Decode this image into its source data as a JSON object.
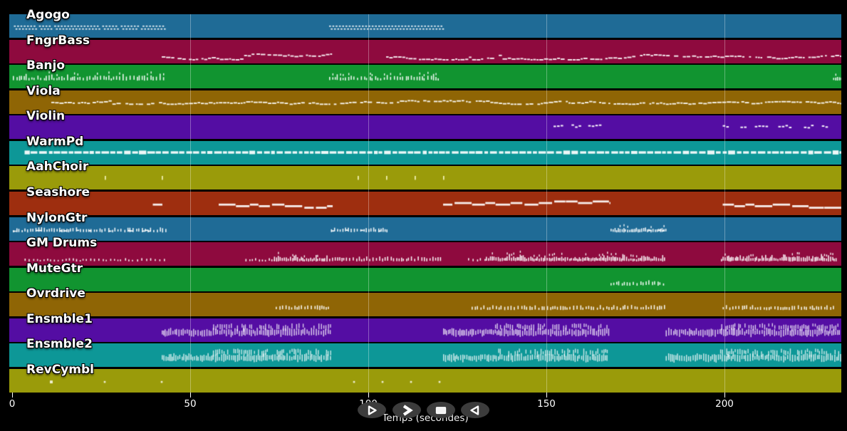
{
  "app": {
    "background": "#000000",
    "note_color": "#ffffff"
  },
  "axis": {
    "xlabel": "Temps (secondes)",
    "ticks": [
      0,
      50,
      100,
      150,
      200
    ],
    "x_range": [
      0,
      233
    ]
  },
  "transport": {
    "buttons": [
      {
        "name": "play",
        "icon": "play-triangle-right-outline"
      },
      {
        "name": "fast-forward",
        "icon": "chevron-right-bold"
      },
      {
        "name": "stop",
        "icon": "stop-square"
      },
      {
        "name": "rewind",
        "icon": "triangle-left-outline"
      }
    ]
  },
  "chart_data": {
    "type": "heatmap",
    "subtype": "midi-track-timeline",
    "x_unit": "seconds",
    "x_range": [
      0,
      233
    ],
    "xlabel": "Temps (secondes)",
    "tracks": [
      {
        "label": "Agogo",
        "color": "#1f6b96",
        "regions": [
          {
            "start": 0.5,
            "end": 43,
            "style": "zigzag",
            "y": 0.56
          },
          {
            "start": 89,
            "end": 121,
            "style": "zigzag",
            "y": 0.56
          }
        ]
      },
      {
        "label": "FngrBass",
        "color": "#8e0a3e",
        "regions": [
          {
            "start": 42,
            "end": 90,
            "style": "dashes",
            "y": 0.71,
            "amp": 4
          },
          {
            "start": 105,
            "end": 233,
            "style": "dashes",
            "y": 0.71,
            "amp": 4
          }
        ]
      },
      {
        "label": "Banjo",
        "color": "#119430",
        "regions": [
          {
            "start": 0.2,
            "end": 43,
            "style": "ticks",
            "y": 0.6,
            "density": "med",
            "tall": true
          },
          {
            "start": 89,
            "end": 120.5,
            "style": "ticks",
            "y": 0.6,
            "density": "med",
            "tall": true
          },
          {
            "start": 230.5,
            "end": 233.3,
            "style": "ticks",
            "y": 0.6,
            "density": "dense"
          }
        ]
      },
      {
        "label": "Viola",
        "color": "#8f6505",
        "regions": [
          {
            "start": 11,
            "end": 233,
            "style": "dashes",
            "y": 0.49,
            "amp": 2.5
          }
        ]
      },
      {
        "label": "Violin",
        "color": "#540da3",
        "regions": [
          {
            "start": 152,
            "end": 167,
            "style": "dash-groups",
            "y": 0.42
          },
          {
            "start": 199.5,
            "end": 231,
            "style": "dash-groups",
            "y": 0.44
          }
        ]
      },
      {
        "label": "WarmPd",
        "color": "#0d9797",
        "regions": [
          {
            "start": 3.5,
            "end": 233,
            "style": "blocks",
            "y": 0.49
          }
        ]
      },
      {
        "label": "AahChoir",
        "color": "#9a9b0a",
        "regions": [
          {
            "style": "sparse-ticks",
            "y": 0.5,
            "at": [
              26,
              42,
              97,
              105,
              113,
              121
            ],
            "mark_color": "#fdfdc8"
          }
        ]
      },
      {
        "label": "Seashore",
        "color": "#9e2e0f",
        "regions": [
          {
            "start": 39.5,
            "end": 42.5,
            "style": "steps",
            "y": 0.51,
            "flat": true
          },
          {
            "start": 58,
            "end": 90,
            "style": "steps",
            "y": 0.51
          },
          {
            "start": 121,
            "end": 168,
            "style": "steps",
            "y": 0.51
          },
          {
            "start": 199.5,
            "end": 233,
            "style": "steps",
            "y": 0.51
          }
        ]
      },
      {
        "label": "NylonGtr",
        "color": "#1f6b96",
        "regions": [
          {
            "start": 0.2,
            "end": 43.5,
            "style": "ticks",
            "y": 0.59,
            "density": "med",
            "mix": true
          },
          {
            "start": 89.5,
            "end": 106,
            "style": "ticks",
            "y": 0.59,
            "density": "med",
            "mix": true
          },
          {
            "start": 168,
            "end": 183.5,
            "style": "ticks",
            "y": 0.59,
            "density": "dense",
            "mix": true
          }
        ]
      },
      {
        "label": "GM Drums",
        "color": "#8e0a3e",
        "regions": [
          {
            "start": 3.5,
            "end": 43,
            "style": "ticks",
            "y": 0.75,
            "density": "sparse",
            "size": "sm"
          },
          {
            "start": 65.5,
            "end": 73.5,
            "style": "ticks",
            "y": 0.75,
            "density": "med",
            "size": "sm"
          },
          {
            "start": 73.5,
            "end": 88.5,
            "style": "ticks",
            "y": 0.75,
            "density": "dense",
            "tall": true
          },
          {
            "start": 89,
            "end": 120.5,
            "style": "ticks",
            "y": 0.75,
            "density": "med"
          },
          {
            "start": 128,
            "end": 133,
            "style": "ticks",
            "y": 0.75,
            "density": "sparse",
            "size": "sm"
          },
          {
            "start": 133,
            "end": 183.5,
            "style": "ticks",
            "y": 0.75,
            "density": "dense",
            "tall": true
          },
          {
            "start": 199,
            "end": 231.5,
            "style": "ticks",
            "y": 0.75,
            "density": "dense",
            "tall": true
          }
        ]
      },
      {
        "label": "MuteGtr",
        "color": "#119430",
        "regions": [
          {
            "start": 168,
            "end": 183.5,
            "style": "ticks",
            "y": 0.7,
            "density": "med"
          }
        ]
      },
      {
        "label": "Ovrdrive",
        "color": "#8f6505",
        "regions": [
          {
            "start": 74,
            "end": 89,
            "style": "ticks",
            "y": 0.66,
            "density": "med"
          },
          {
            "start": 129,
            "end": 183.5,
            "style": "ticks",
            "y": 0.66,
            "density": "med"
          },
          {
            "start": 199.5,
            "end": 230.5,
            "style": "ticks",
            "y": 0.66,
            "density": "med"
          }
        ]
      },
      {
        "label": "Ensmble1",
        "color": "#540da3",
        "regions": [
          {
            "start": 42,
            "end": 89.5,
            "style": "cluster",
            "y": 0.6
          },
          {
            "start": 121,
            "end": 167.5,
            "style": "cluster",
            "y": 0.6
          },
          {
            "start": 183.5,
            "end": 233,
            "style": "cluster",
            "y": 0.6
          }
        ]
      },
      {
        "label": "Ensmble2",
        "color": "#0d9797",
        "regions": [
          {
            "start": 42,
            "end": 89.5,
            "style": "cluster",
            "y": 0.6
          },
          {
            "start": 121,
            "end": 167.5,
            "style": "cluster",
            "y": 0.6
          },
          {
            "start": 183.5,
            "end": 233,
            "style": "cluster",
            "y": 0.6
          }
        ]
      },
      {
        "label": "RevCymbl",
        "color": "#9a9b0a",
        "regions": [
          {
            "style": "dots",
            "y": 0.55,
            "at": [
              11,
              26,
              42,
              96,
              104,
              112,
              120
            ],
            "mark_color": "#f5f5e0"
          }
        ]
      }
    ]
  }
}
